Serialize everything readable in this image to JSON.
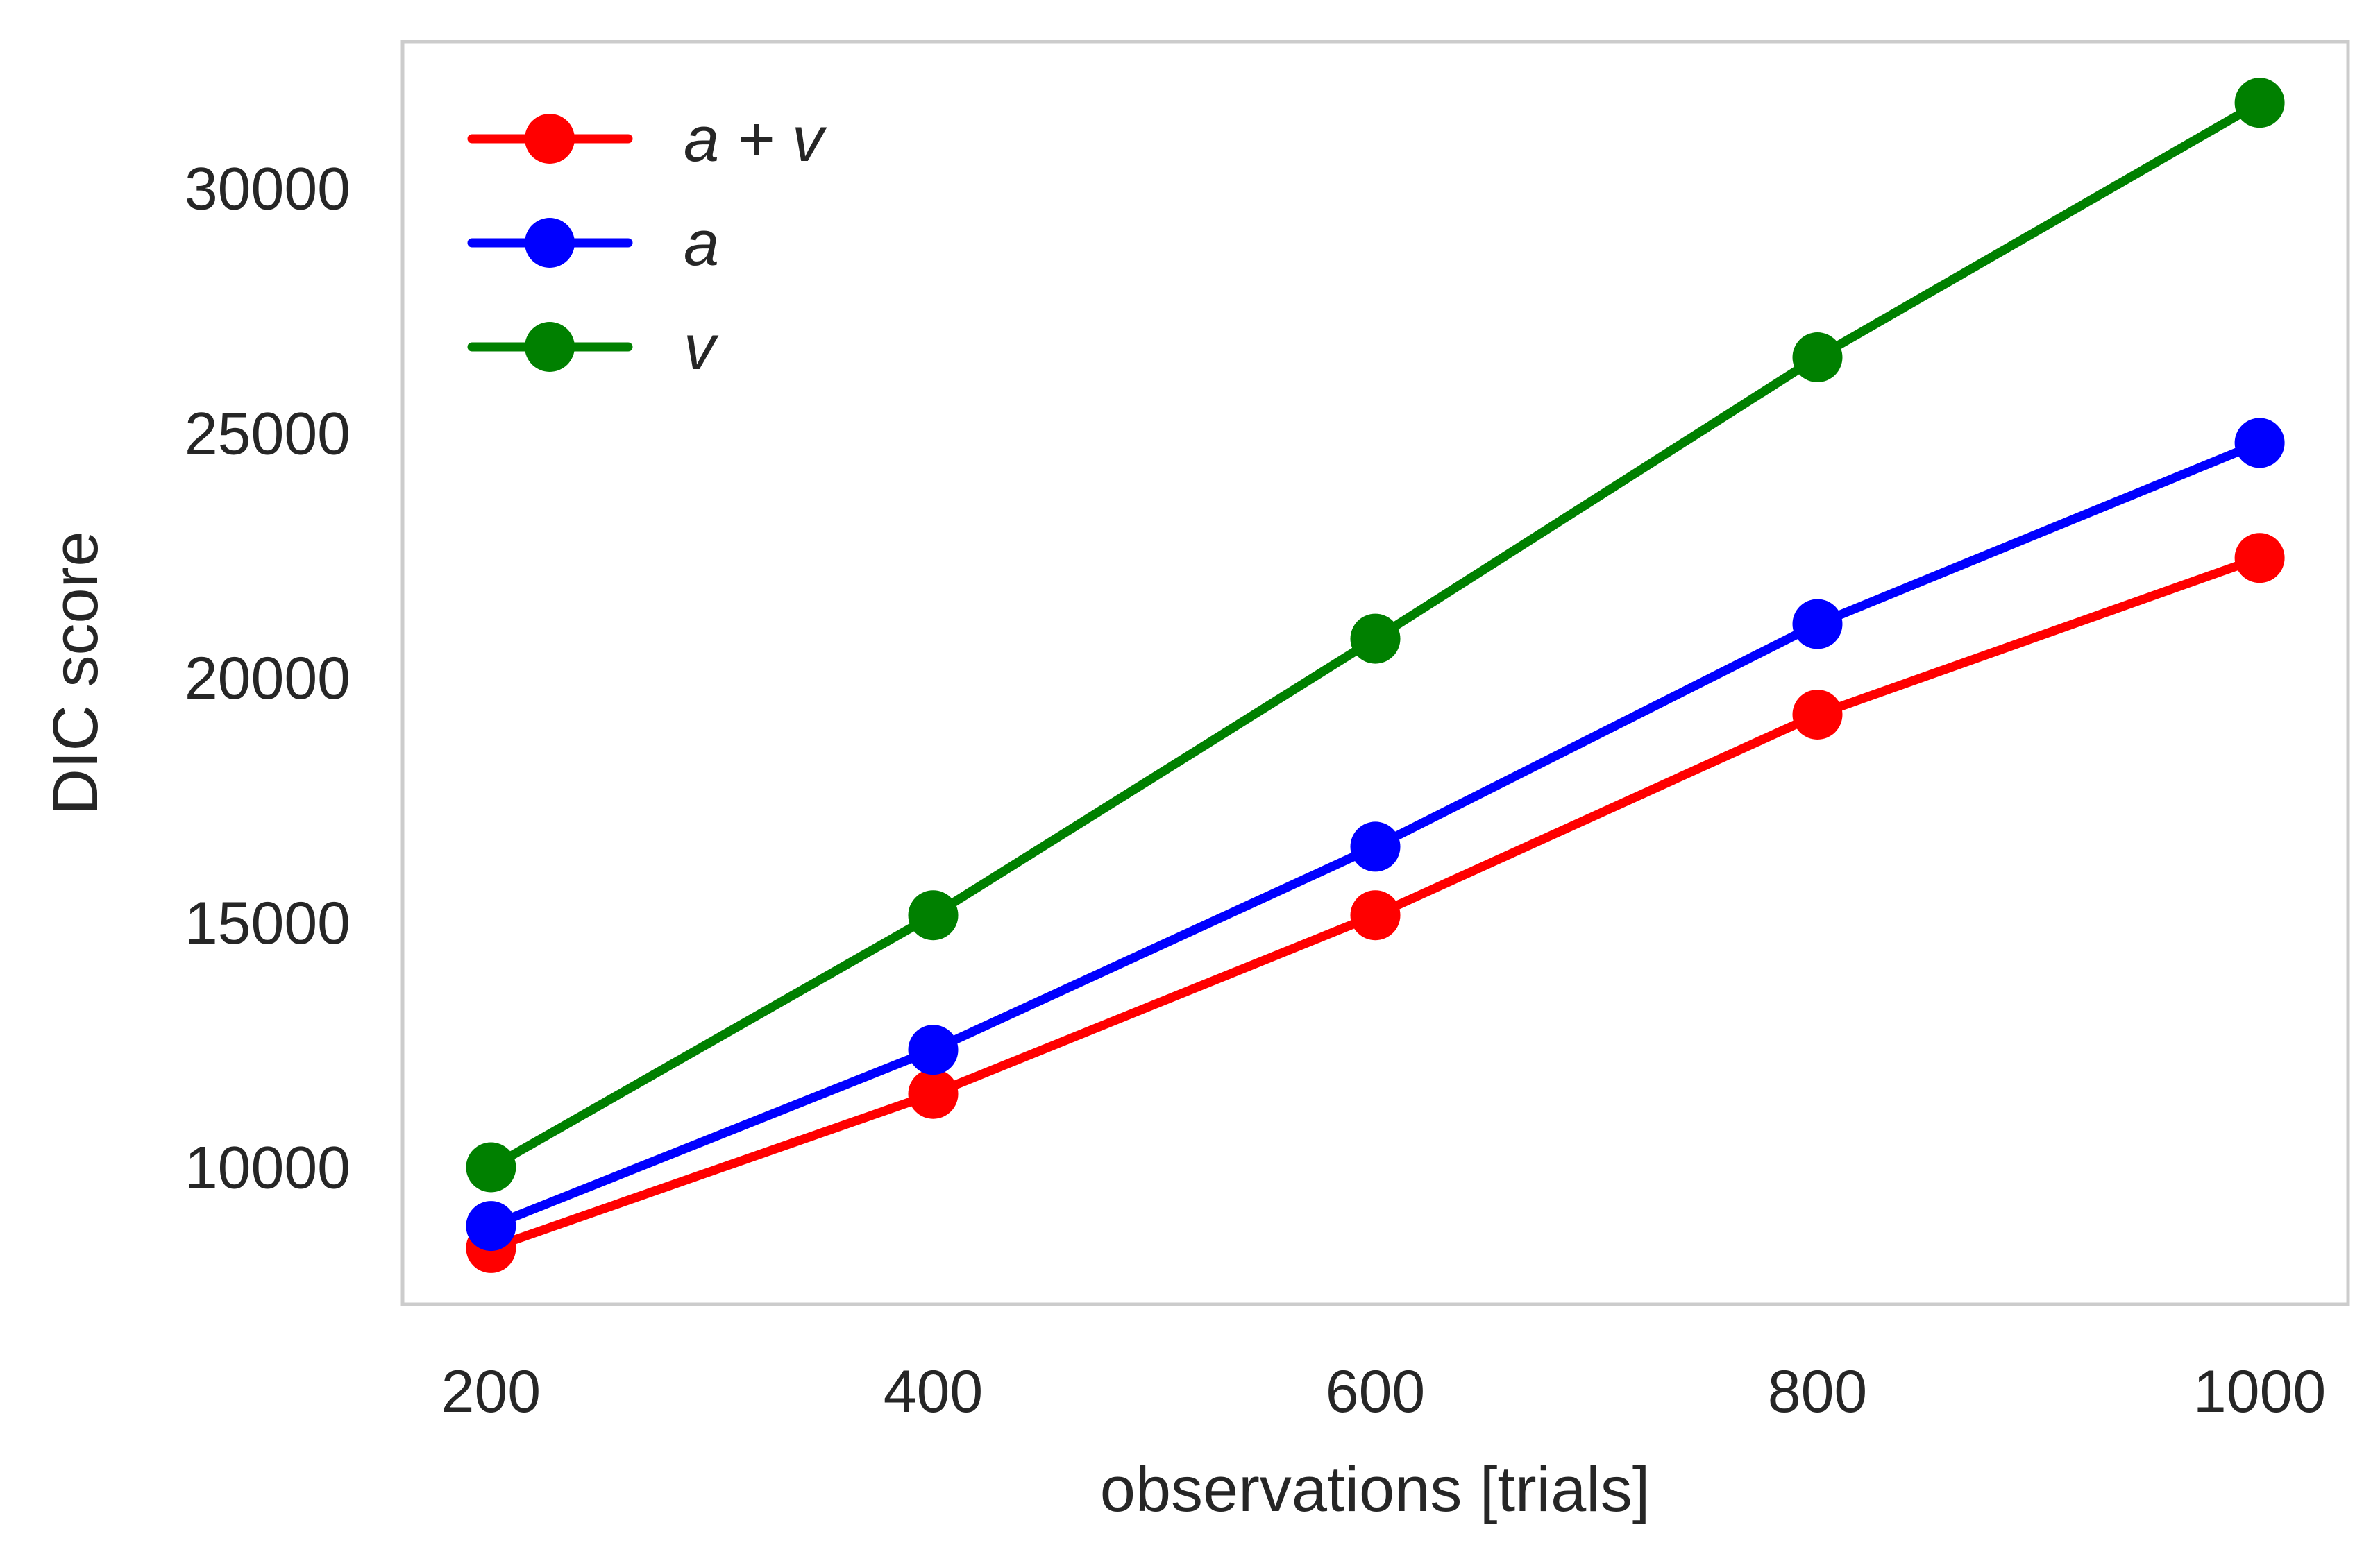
{
  "chart_data": {
    "type": "line",
    "title": "",
    "xlabel": "observations [trials]",
    "ylabel": "DIC score",
    "x": [
      200,
      400,
      600,
      800,
      1000
    ],
    "xticks": [
      "200",
      "400",
      "600",
      "800",
      "1000"
    ],
    "yticks": [
      "10000",
      "15000",
      "20000",
      "25000",
      "30000"
    ],
    "xlim": [
      160,
      1040
    ],
    "ylim": [
      7200,
      33000
    ],
    "grid": false,
    "legend_position": "top-left",
    "series": [
      {
        "name": "a + v",
        "color": "#ff0000",
        "values": [
          8350,
          11500,
          15150,
          19250,
          22450
        ]
      },
      {
        "name": "a",
        "color": "#0000ff",
        "values": [
          8800,
          12400,
          16550,
          21100,
          24800
        ]
      },
      {
        "name": "v",
        "color": "#008000",
        "values": [
          10000,
          15150,
          20800,
          26550,
          31750
        ]
      }
    ]
  }
}
